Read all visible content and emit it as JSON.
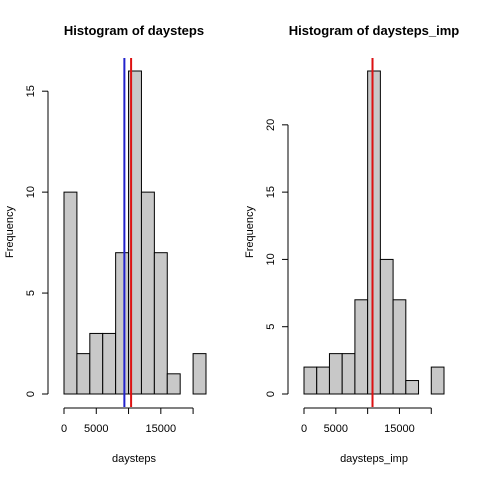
{
  "chart_data": [
    {
      "type": "bar",
      "title": "Histogram of daysteps",
      "xlabel": "daysteps",
      "ylabel": "Frequency",
      "bin_width": 2000,
      "bin_starts": [
        0,
        2000,
        4000,
        6000,
        8000,
        10000,
        12000,
        14000,
        16000,
        18000,
        20000
      ],
      "values": [
        10,
        2,
        3,
        3,
        7,
        16,
        10,
        7,
        1,
        0,
        2
      ],
      "xlim": [
        0,
        22000
      ],
      "ylim": [
        0,
        16
      ],
      "x_ticks": [
        0,
        5000,
        10000,
        15000,
        20000
      ],
      "x_tick_labels": [
        "0",
        "5000",
        "",
        "15000",
        ""
      ],
      "y_ticks": [
        0,
        5,
        10,
        15
      ],
      "y_tick_labels": [
        "0",
        "5",
        "10",
        "15"
      ],
      "vlines": [
        {
          "x": 9354,
          "color": "#2222cc"
        },
        {
          "x": 10395,
          "color": "#dd1111"
        }
      ]
    },
    {
      "type": "bar",
      "title": "Histogram of daysteps_imp",
      "xlabel": "daysteps_imp",
      "ylabel": "Frequency",
      "bin_width": 2000,
      "bin_starts": [
        0,
        2000,
        4000,
        6000,
        8000,
        10000,
        12000,
        14000,
        16000,
        18000,
        20000
      ],
      "values": [
        2,
        2,
        3,
        3,
        7,
        24,
        10,
        7,
        1,
        0,
        2
      ],
      "xlim": [
        0,
        22000
      ],
      "ylim": [
        0,
        24
      ],
      "x_ticks": [
        0,
        5000,
        10000,
        15000,
        20000
      ],
      "x_tick_labels": [
        "0",
        "5000",
        "",
        "15000",
        ""
      ],
      "y_ticks": [
        0,
        5,
        10,
        15,
        20
      ],
      "y_tick_labels": [
        "0",
        "5",
        "10",
        "15",
        "20"
      ],
      "vlines": [
        {
          "x": 10766,
          "color": "#2222cc"
        },
        {
          "x": 10766,
          "color": "#dd1111"
        }
      ]
    }
  ]
}
